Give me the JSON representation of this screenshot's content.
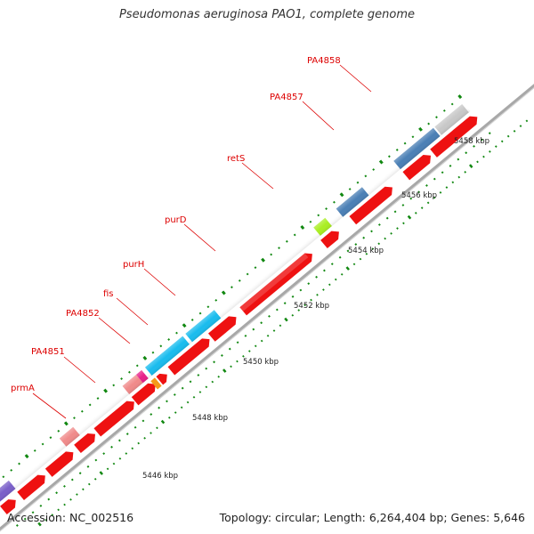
{
  "title": "Pseudomonas aeruginosa PAO1, complete genome",
  "footer": {
    "accession_label": "Accession: NC_002516",
    "summary": "Topology: circular; Length: 6,264,404 bp; Genes: 5,646"
  },
  "colors": {
    "backbone": "#a8a8a8",
    "cds_forward": "#ee1111",
    "tick": "#118811",
    "label": "#dd0000"
  },
  "genes": [
    {
      "name": "prmA",
      "color": "#f08a8a"
    },
    {
      "name": "PA4851",
      "color": "#f08a8a"
    },
    {
      "name": "PA4852",
      "color": "#f08a8a"
    },
    {
      "name": "fis",
      "color": "#e8208a"
    },
    {
      "name": "purH",
      "color": "#19bcee"
    },
    {
      "name": "purD",
      "color": "#19bcee"
    },
    {
      "name": "retS",
      "color": "#ee1111"
    },
    {
      "name": "PA4857",
      "color": "#aaee22"
    },
    {
      "name": "PA4858",
      "color": "#4a7fb5"
    }
  ],
  "scale_labels": [
    "5446 kbp",
    "5448 kbp",
    "5450 kbp",
    "5452 kbp",
    "5454 kbp",
    "5456 kbp",
    "5458 kbp"
  ]
}
